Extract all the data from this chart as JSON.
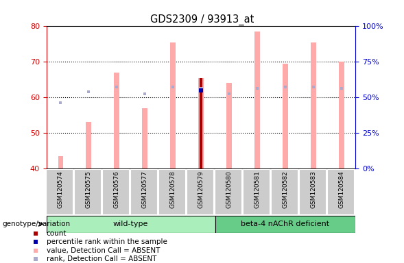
{
  "title": "GDS2309 / 93913_at",
  "samples": [
    "GSM120574",
    "GSM120575",
    "GSM120576",
    "GSM120577",
    "GSM120578",
    "GSM120579",
    "GSM120580",
    "GSM120581",
    "GSM120582",
    "GSM120583",
    "GSM120584"
  ],
  "ylim_left": [
    40,
    80
  ],
  "ylim_right": [
    0,
    100
  ],
  "yticks_left": [
    40,
    50,
    60,
    70,
    80
  ],
  "yticks_right": [
    0,
    25,
    50,
    75,
    100
  ],
  "value_absent": [
    43.5,
    53.0,
    67.0,
    57.0,
    75.5,
    65.5,
    64.0,
    78.5,
    69.5,
    75.5,
    70.0
  ],
  "rank_absent": [
    58.5,
    61.5,
    63.0,
    61.0,
    63.0,
    62.5,
    61.0,
    62.5,
    63.0,
    63.0,
    62.5
  ],
  "count_val": [
    null,
    null,
    null,
    null,
    null,
    65.5,
    null,
    null,
    null,
    null,
    null
  ],
  "percentile_rank": [
    null,
    null,
    null,
    null,
    null,
    62.0,
    null,
    null,
    null,
    null,
    null
  ],
  "wild_type_label": "wild-type",
  "beta4_label": "beta-4 nAChR deficient",
  "genotype_label": "genotype/variation",
  "bar_width": 0.18,
  "value_absent_color": "#ffaaaa",
  "rank_absent_color": "#aaaacc",
  "count_color": "#aa0000",
  "percentile_color": "#0000aa",
  "left_tick_color": "#cc0000",
  "right_tick_color": "#0000cc",
  "wildtype_bg": "#aaeebb",
  "beta4_bg": "#66cc88",
  "xticklabel_bg": "#cccccc",
  "legend_labels": [
    "count",
    "percentile rank within the sample",
    "value, Detection Call = ABSENT",
    "rank, Detection Call = ABSENT"
  ],
  "legend_colors": [
    "#aa0000",
    "#0000aa",
    "#ffaaaa",
    "#aaaacc"
  ]
}
